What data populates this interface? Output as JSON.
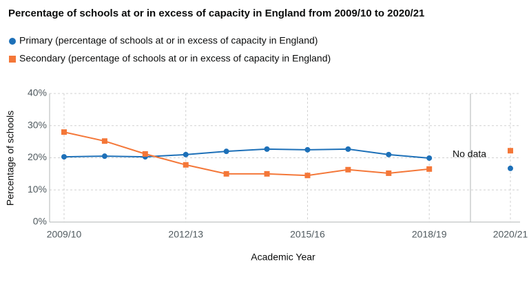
{
  "chart_data": {
    "type": "line",
    "title": "Percentage of schools at or in excess of capacity in England from 2009/10 to 2020/21",
    "x_label": "Academic Year",
    "y_label": "Percentage of schools",
    "categories": [
      "2009/10",
      null,
      null,
      "2012/13",
      null,
      null,
      "2015/16",
      null,
      null,
      "2018/19",
      null,
      "2020/21"
    ],
    "series": [
      {
        "name": "Primary (percentage of schools at or in excess of capacity in England)",
        "color": "#1d70b8",
        "marker": "circle",
        "values": [
          20.3,
          20.5,
          20.3,
          21.0,
          22.0,
          22.7,
          22.5,
          22.7,
          21.0,
          19.9,
          null,
          16.7
        ]
      },
      {
        "name": "Secondary (percentage of schools at or in excess of capacity in England)",
        "color": "#f47738",
        "marker": "square",
        "values": [
          28.0,
          25.2,
          21.2,
          17.8,
          15.0,
          15.0,
          14.5,
          16.3,
          15.2,
          16.5,
          null,
          22.2
        ]
      }
    ],
    "annotation": "No data",
    "ylim": [
      0,
      40
    ],
    "yticks": [
      {
        "value": 0,
        "label": "0%"
      },
      {
        "value": 10,
        "label": "10%"
      },
      {
        "value": 20,
        "label": "20%"
      },
      {
        "value": 30,
        "label": "30%"
      },
      {
        "value": 40,
        "label": "40%"
      }
    ],
    "grid": true
  }
}
